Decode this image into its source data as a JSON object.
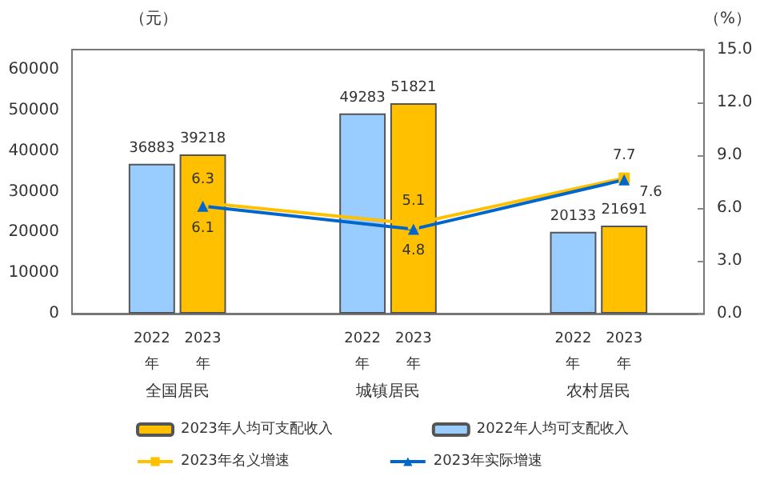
{
  "chart_data": {
    "type": "bar",
    "ylabel": "（元）",
    "y2label": "（%）",
    "categories": [
      "全国居民",
      "城镇居民",
      "农村居民"
    ],
    "series": [
      {
        "name": "2022年人均可支配收入",
        "color": "#99ccff",
        "values": [
          36883,
          49283,
          20133
        ]
      },
      {
        "name": "2023年人均可支配收入",
        "color": "#ffc000",
        "values": [
          39218,
          51821,
          21691
        ]
      },
      {
        "name": "2023年名义增速",
        "type": "line",
        "axis": "y2",
        "color": "#ffc000",
        "marker": "square",
        "values": [
          6.3,
          5.1,
          7.7
        ]
      },
      {
        "name": "2023年实际增速",
        "type": "line",
        "axis": "y2",
        "color": "#0066cc",
        "marker": "triangle",
        "values": [
          6.1,
          4.8,
          7.6
        ]
      }
    ],
    "annotations": [
      "2022年",
      "2023年",
      "2022年",
      "2023年",
      "2022年",
      "2023年"
    ],
    "ylim": [
      0,
      65000
    ],
    "yticks": [
      0,
      10000,
      20000,
      30000,
      40000,
      50000,
      60000
    ],
    "y2lim": [
      0,
      15
    ],
    "y2ticks": [
      {
        "value": 0,
        "label": "0.0"
      },
      {
        "value": 3,
        "label": "3.0"
      },
      {
        "value": 6,
        "label": "6.0"
      },
      {
        "value": 9,
        "label": "9.0"
      },
      {
        "value": 12,
        "label": "12.0"
      },
      {
        "value": 15,
        "label": "15.0"
      }
    ],
    "data_labels": true,
    "grid": false,
    "legend": "bottom"
  }
}
